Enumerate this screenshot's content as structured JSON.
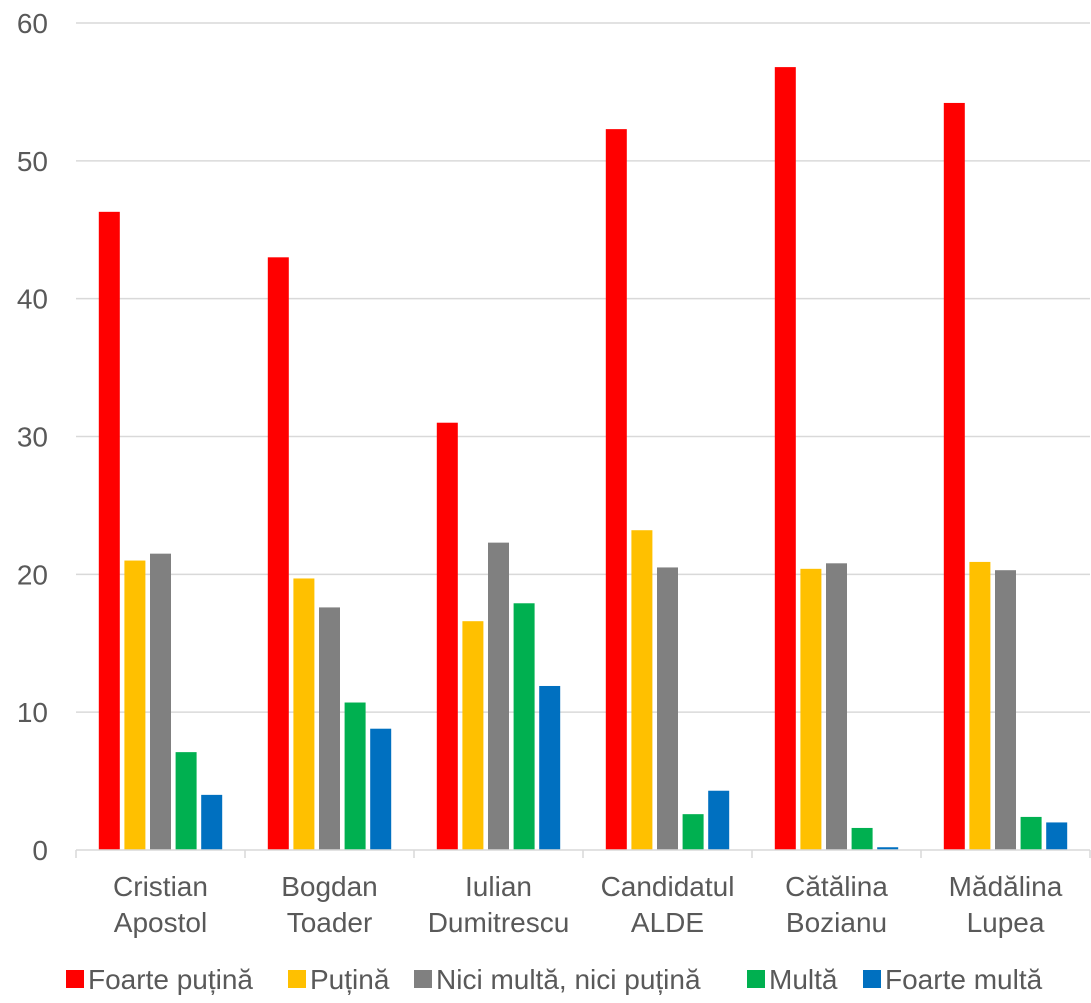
{
  "chart_data": {
    "type": "bar",
    "categories": [
      [
        "Cristian",
        "Apostol"
      ],
      [
        "Bogdan",
        "Toader"
      ],
      [
        "Iulian",
        "Dumitrescu"
      ],
      [
        "Candidatul",
        "ALDE"
      ],
      [
        "Cătălina",
        "Bozianu"
      ],
      [
        "Mădălina",
        "Lupea"
      ]
    ],
    "series": [
      {
        "name": "Foarte puțină",
        "color": "#ff0000",
        "values": [
          46.3,
          43.0,
          31.0,
          52.3,
          56.8,
          54.2
        ]
      },
      {
        "name": "Puțină",
        "color": "#ffc000",
        "values": [
          21.0,
          19.7,
          16.6,
          23.2,
          20.4,
          20.9
        ]
      },
      {
        "name": "Nici multă, nici puțină",
        "color": "#808080",
        "values": [
          21.5,
          17.6,
          22.3,
          20.5,
          20.8,
          20.3
        ]
      },
      {
        "name": "Multă",
        "color": "#00b050",
        "values": [
          7.1,
          10.7,
          17.9,
          2.6,
          1.6,
          2.4
        ]
      },
      {
        "name": "Foarte multă",
        "color": "#0070c0",
        "values": [
          4.0,
          8.8,
          11.9,
          4.3,
          0.2,
          2.0
        ]
      }
    ],
    "yticks": [
      "0",
      "10",
      "20",
      "30",
      "40",
      "50",
      "60"
    ],
    "ylim": [
      0,
      60
    ],
    "grid": true,
    "legend": "bottom",
    "xlabel": "",
    "ylabel": "",
    "title": ""
  }
}
